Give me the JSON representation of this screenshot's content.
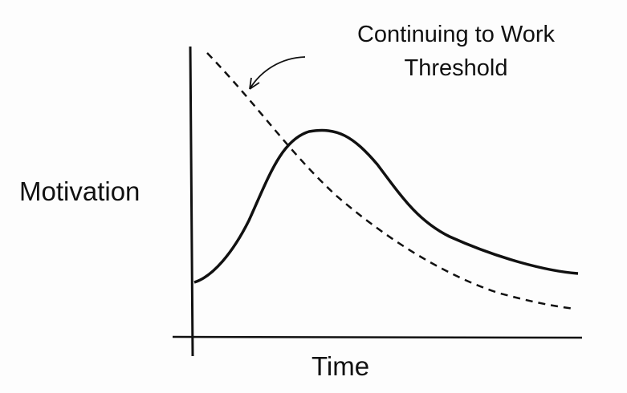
{
  "annotation": {
    "line1": "Continuing to Work",
    "line2": "Threshold"
  },
  "y_axis_label": "Motivation",
  "x_axis_label": "Time",
  "colors": {
    "ink": "#111111",
    "background": "#fdfdfd"
  }
}
